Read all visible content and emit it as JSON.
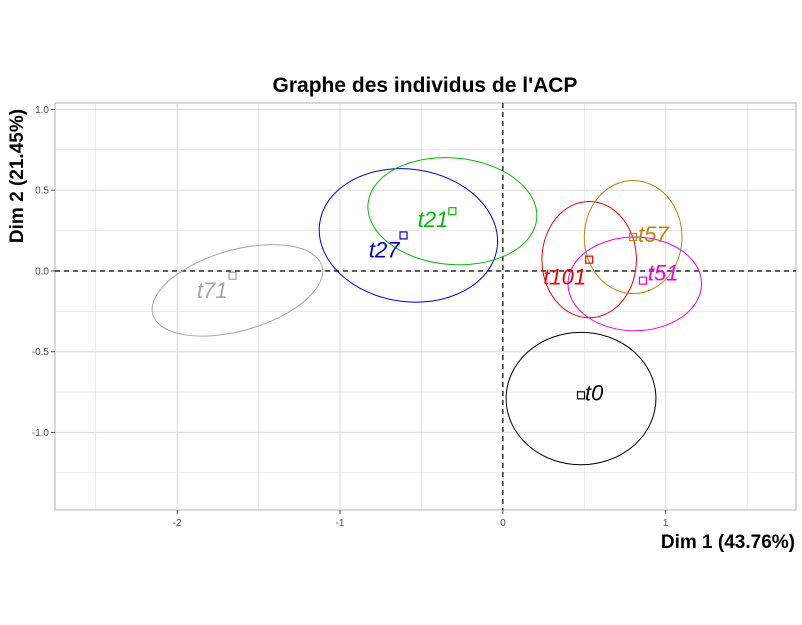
{
  "chart_data": {
    "type": "scatter",
    "title": "Graphe des individus de l'ACP",
    "xlabel": "Dim 1 (43.76%)",
    "ylabel": "Dim 2 (21.45%)",
    "xlim": [
      -2.75,
      1.8
    ],
    "ylim": [
      -1.48,
      1.04
    ],
    "xticks": [
      -2,
      -1,
      0,
      1
    ],
    "yticks": [
      -1.0,
      -0.5,
      0.0,
      0.5,
      1.0
    ],
    "xtick_labels": [
      "-2",
      "-1",
      "0",
      "1"
    ],
    "ytick_labels": [
      "-1.0",
      "-0.5",
      "0.0",
      "0.5",
      "1.0"
    ],
    "grid": true,
    "reference_lines": {
      "x": 0,
      "y": 0,
      "style": "dashed"
    },
    "points": [
      {
        "label": "t71",
        "x": -1.66,
        "y": -0.03,
        "color": "#a6a6a6",
        "ellipse": {
          "cx": -1.63,
          "cy": -0.12,
          "rx": 0.54,
          "ry": 0.25,
          "angle_deg": 16
        }
      },
      {
        "label": "t27",
        "x": -0.61,
        "y": 0.22,
        "color": "#0000cc",
        "ellipse": {
          "cx": -0.58,
          "cy": 0.22,
          "rx": 0.55,
          "ry": 0.41,
          "angle_deg": -8
        }
      },
      {
        "label": "t21",
        "x": -0.31,
        "y": 0.37,
        "color": "#00bb00",
        "ellipse": {
          "cx": -0.31,
          "cy": 0.37,
          "rx": 0.52,
          "ry": 0.33,
          "angle_deg": -5
        }
      },
      {
        "label": "t101",
        "x": 0.53,
        "y": 0.07,
        "color": "#ee0000",
        "ellipse": {
          "cx": 0.53,
          "cy": 0.07,
          "rx": 0.29,
          "ry": 0.36,
          "angle_deg": 0
        }
      },
      {
        "label": "t57",
        "x": 0.8,
        "y": 0.21,
        "color": "#b8860b",
        "ellipse": {
          "cx": 0.8,
          "cy": 0.21,
          "rx": 0.3,
          "ry": 0.35,
          "angle_deg": 0
        }
      },
      {
        "label": "t51",
        "x": 0.86,
        "y": -0.06,
        "color": "#ee00ee",
        "ellipse": {
          "cx": 0.81,
          "cy": -0.08,
          "rx": 0.41,
          "ry": 0.29,
          "angle_deg": 0
        }
      },
      {
        "label": "t0",
        "x": 0.48,
        "y": -0.77,
        "color": "#000000",
        "ellipse": {
          "cx": 0.48,
          "cy": -0.79,
          "rx": 0.46,
          "ry": 0.41,
          "angle_deg": 0
        }
      }
    ]
  }
}
